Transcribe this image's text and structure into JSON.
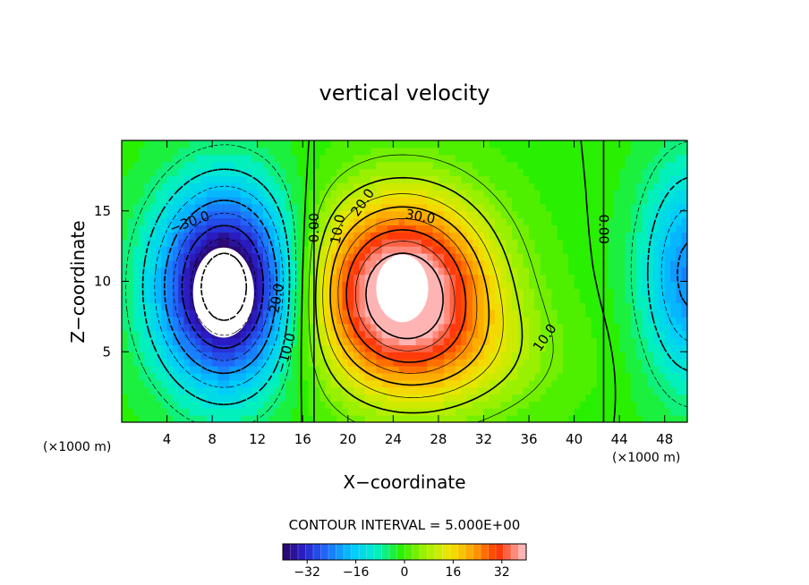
{
  "chart_data": {
    "type": "heatmap",
    "title": "vertical velocity",
    "xlabel": "X−coordinate",
    "ylabel": "Z−coordinate",
    "x_unit_left": "(×1000 m)",
    "x_unit_right": "(×1000 m)",
    "xlim": [
      0,
      50
    ],
    "ylim": [
      0,
      20
    ],
    "x_ticks": [
      4,
      8,
      12,
      16,
      20,
      24,
      28,
      32,
      36,
      40,
      44,
      48
    ],
    "y_ticks": [
      5,
      10,
      15
    ],
    "contour_interval_text": "CONTOUR INTERVAL = 5.000E+00",
    "contour_interval": 5,
    "colorbar": {
      "range": [
        -40,
        40
      ],
      "ticks": [
        -32,
        -16,
        0,
        16,
        32
      ],
      "tick_labels": [
        "−32",
        "−16",
        "0",
        "16",
        "32"
      ]
    },
    "contour_labels": [
      {
        "text": "−30.0",
        "x": 6.0,
        "y": 14.2,
        "rotate": -20
      },
      {
        "text": "−20.0",
        "x": 13.6,
        "y": 8.4,
        "rotate": -80
      },
      {
        "text": "−10.0",
        "x": 14.5,
        "y": 4.9,
        "rotate": -75
      },
      {
        "text": "0.00",
        "x": 17.0,
        "y": 13.8,
        "rotate": -90
      },
      {
        "text": "10.0",
        "x": 19.1,
        "y": 13.7,
        "rotate": -80
      },
      {
        "text": "20.0",
        "x": 21.3,
        "y": 15.6,
        "rotate": -55
      },
      {
        "text": "30.0",
        "x": 26.4,
        "y": 14.6,
        "rotate": 10
      },
      {
        "text": "10.0",
        "x": 37.4,
        "y": 6.0,
        "rotate": -55
      },
      {
        "text": "0.00",
        "x": 42.6,
        "y": 13.7,
        "rotate": 90
      }
    ],
    "features": {
      "updraft_max_center": {
        "x": 24.8,
        "z": 9.5,
        "value_approx": 40
      },
      "downdraft_min_center": {
        "x": 9.0,
        "z": 9.2,
        "value_approx": -40
      },
      "zero_line_x": [
        17.0,
        42.6
      ]
    }
  }
}
